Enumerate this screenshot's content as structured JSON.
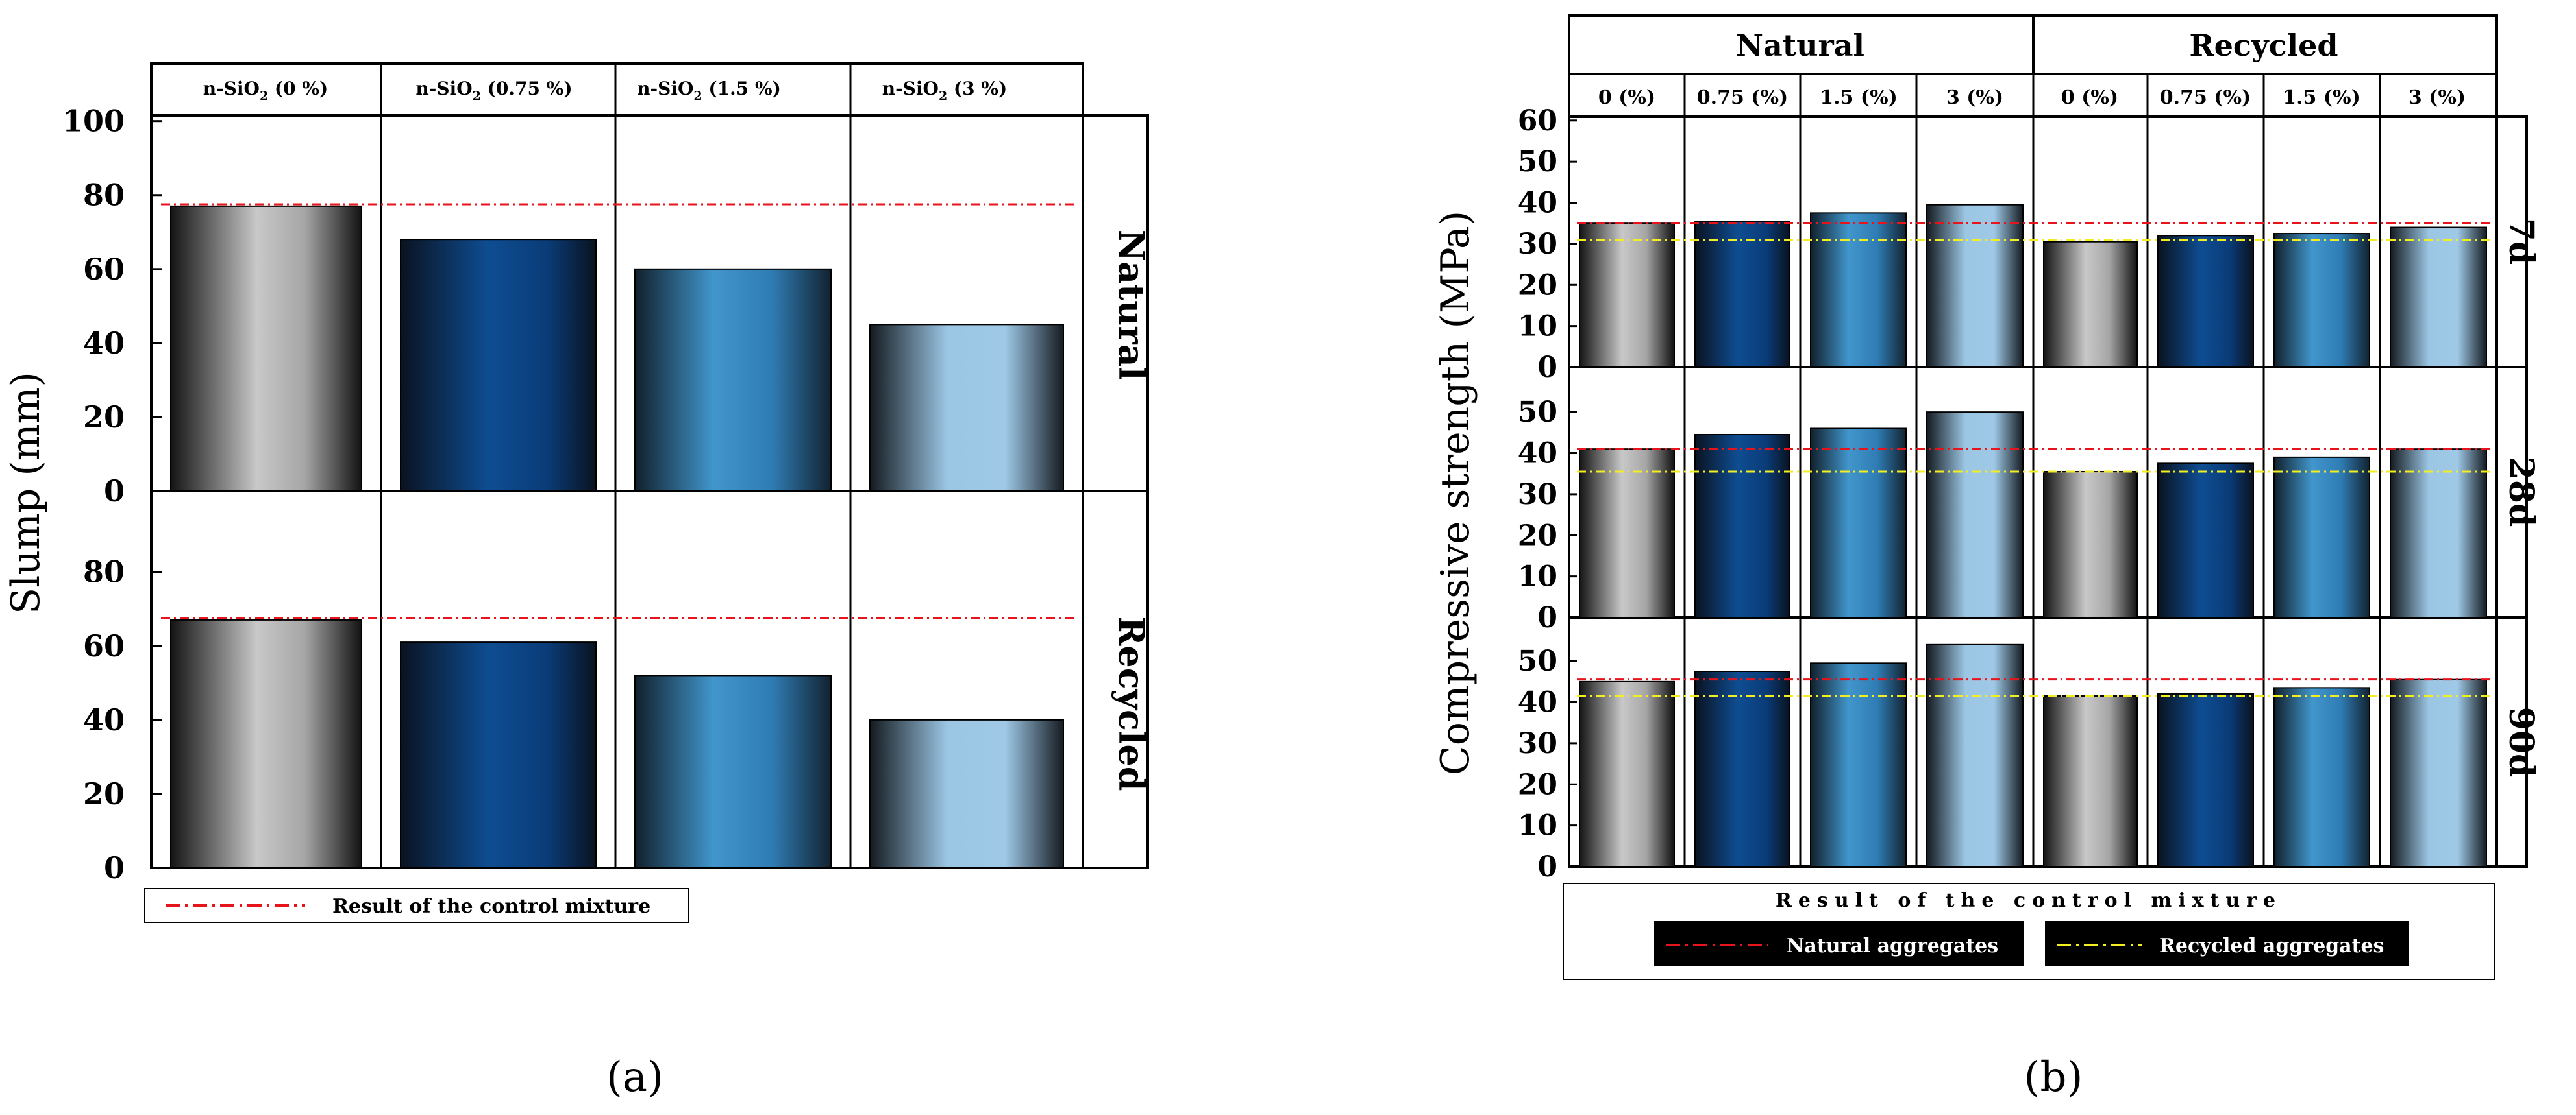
{
  "colors": {
    "control_natural": "#e8141b",
    "control_recycled": "#f2ee22",
    "gradients": [
      "grey",
      "navy",
      "steel",
      "light"
    ]
  },
  "chart_data": [
    {
      "id": "a",
      "type": "bar",
      "panel_label": "(a)",
      "ylabel": "Slump (mm)",
      "columns": [
        "n-SiO₂ (0 %)",
        "n-SiO₂ (0.75 %)",
        "n-SiO₂ (1.5 %)",
        "n-SiO₂ (3 %)"
      ],
      "rows": [
        {
          "label": "Natural",
          "values": [
            77,
            68,
            60,
            45
          ],
          "control": 77.5,
          "ylim": [
            0,
            100
          ],
          "yticks": [
            "0",
            "20",
            "40",
            "60",
            "80",
            "100"
          ]
        },
        {
          "label": "Recycled",
          "values": [
            67,
            61,
            52,
            40
          ],
          "control": 67.5,
          "ylim": [
            0,
            100
          ],
          "yticks": [
            "0",
            "20",
            "40",
            "60",
            "80"
          ]
        }
      ],
      "legend": [
        {
          "label": "Result of the control mixture",
          "color": "#e8141b"
        }
      ]
    },
    {
      "id": "b",
      "type": "bar",
      "panel_label": "(b)",
      "ylabel": "Compressive strength (MPa)",
      "groups": [
        "Natural",
        "Recycled"
      ],
      "columns": [
        "0 (%)",
        "0.75 (%)",
        "1.5 (%)",
        "3 (%)",
        "0 (%)",
        "0.75 (%)",
        "1.5 (%)",
        "3 (%)"
      ],
      "rows": [
        {
          "label": "7d",
          "values": [
            35,
            35.5,
            37.5,
            39.5,
            30.5,
            32,
            32.5,
            34
          ],
          "control_natural": 35,
          "control_recycled": 31,
          "ylim": [
            0,
            60
          ],
          "yticks": [
            "0",
            "10",
            "20",
            "30",
            "40",
            "50",
            "60"
          ]
        },
        {
          "label": "28d",
          "values": [
            41,
            44.5,
            46,
            50,
            35.5,
            37.5,
            39,
            41
          ],
          "control_natural": 41,
          "control_recycled": 35.5,
          "ylim": [
            0,
            60
          ],
          "yticks": [
            "0",
            "10",
            "20",
            "30",
            "40",
            "50"
          ]
        },
        {
          "label": "90d",
          "values": [
            45,
            47.5,
            49.5,
            54,
            41.5,
            42,
            43.5,
            45.5
          ],
          "control_natural": 45.5,
          "control_recycled": 41.5,
          "ylim": [
            0,
            60
          ],
          "yticks": [
            "0",
            "10",
            "20",
            "30",
            "40",
            "50"
          ]
        }
      ],
      "legend_title": "Result of the control mixture",
      "legend": [
        {
          "label": "Natural aggregates",
          "color": "#e8141b"
        },
        {
          "label": "Recycled aggregates",
          "color": "#f2ee22"
        }
      ]
    }
  ]
}
